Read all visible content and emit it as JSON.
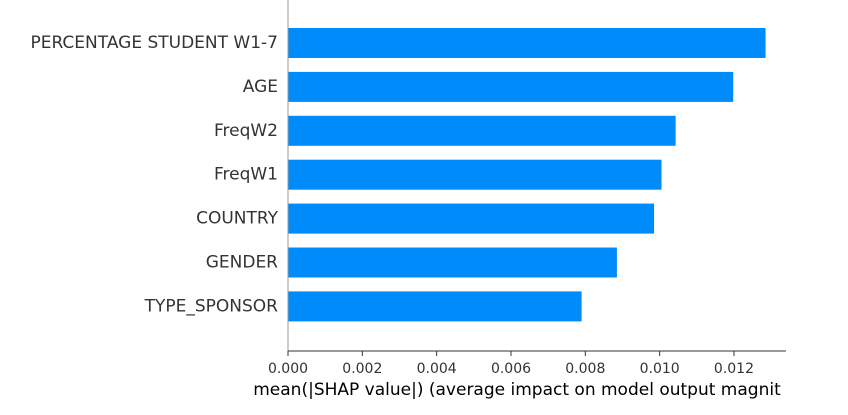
{
  "chart_data": {
    "type": "bar",
    "orientation": "horizontal",
    "title": "",
    "xlabel": "mean(|SHAP value|) (average impact on model output magnit",
    "ylabel": "",
    "categories": [
      "PERCENTAGE STUDENT W1-7",
      "AGE",
      "FreqW2",
      "FreqW1",
      "COUNTRY",
      "GENDER",
      "TYPE_SPONSOR"
    ],
    "values": [
      0.01285,
      0.01198,
      0.01043,
      0.01005,
      0.00985,
      0.00885,
      0.0079
    ],
    "xlim": [
      0,
      0.0134
    ],
    "xticks": [
      "0.000",
      "0.002",
      "0.004",
      "0.006",
      "0.008",
      "0.010",
      "0.012"
    ],
    "grid": false,
    "legend": "none",
    "bar_color": "#008bfb"
  }
}
